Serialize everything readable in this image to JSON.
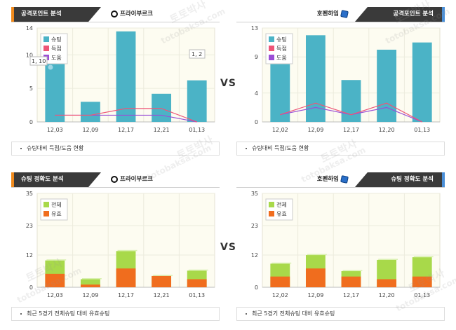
{
  "watermark": {
    "korean": "토토박사",
    "site": "totobaksa.com"
  },
  "vs_label": "VS",
  "panels": {
    "attack_home": {
      "tab": "공격포인트 분석",
      "team": "프라이부르크",
      "footer": "슈팅대비 득점/도움 현황",
      "tooltip": "1, 10",
      "tooltip2": "1, 2"
    },
    "attack_away": {
      "tab": "공격포인트 분석",
      "team": "호펜하임",
      "footer": "슈팅대비 득점/도움 현황"
    },
    "shot_home": {
      "tab": "슈팅 정확도 분석",
      "team": "프라이부르크",
      "footer": "최근 5경기 전체슈팅 대비 유효슈팅"
    },
    "shot_away": {
      "tab": "슈팅 정확도 분석",
      "team": "호펜하임",
      "footer": "최근 5경기 전체슈팅 대비 유효슈팅"
    }
  },
  "colors": {
    "shots": "#4bb3c6",
    "goals": "#ee5577",
    "assists": "#9b4fd6",
    "total": "#a8d94a",
    "on_target": "#f06d1e",
    "accent_left": "#f08a1c",
    "accent_right": "#4a8fd8"
  },
  "chart_data": [
    {
      "type": "bar",
      "title": "공격포인트 분석",
      "team": "프라이부르크",
      "categories": [
        "12,03",
        "12,09",
        "12,17",
        "12,21",
        "01,13"
      ],
      "ylim": [
        0,
        14
      ],
      "yticks": [
        0,
        5,
        10,
        14
      ],
      "legend_position": "top-left",
      "series": [
        {
          "name": "슈팅",
          "kind": "bar",
          "values": [
            10,
            3,
            13.5,
            4.2,
            6.2
          ]
        },
        {
          "name": "득점",
          "kind": "line",
          "values": [
            1,
            1,
            2,
            2,
            0
          ]
        },
        {
          "name": "도움",
          "kind": "line",
          "values": [
            1,
            1,
            1,
            1,
            0
          ]
        }
      ]
    },
    {
      "type": "bar",
      "title": "공격포인트 분석",
      "team": "호펜하임",
      "categories": [
        "12,02",
        "12,09",
        "12,17",
        "12,20",
        "01,13"
      ],
      "ylim": [
        0,
        13
      ],
      "yticks": [
        0,
        4,
        9,
        13
      ],
      "legend_position": "top-left",
      "series": [
        {
          "name": "슈팅",
          "kind": "bar",
          "values": [
            8,
            12,
            5.8,
            10,
            11
          ]
        },
        {
          "name": "득점",
          "kind": "line",
          "values": [
            1,
            2.6,
            1,
            2.6,
            0
          ]
        },
        {
          "name": "도움",
          "kind": "line",
          "values": [
            1,
            2,
            1,
            2,
            0
          ]
        }
      ]
    },
    {
      "type": "bar",
      "title": "슈팅 정확도 분석",
      "team": "프라이부르크",
      "categories": [
        "12,03",
        "12,09",
        "12,17",
        "12,21",
        "01,13"
      ],
      "ylim": [
        0,
        35
      ],
      "yticks": [
        0,
        12,
        23,
        35
      ],
      "legend_position": "top-left",
      "series": [
        {
          "name": "전체",
          "kind": "bar",
          "values": [
            10,
            3,
            13.5,
            4.2,
            6.2
          ]
        },
        {
          "name": "유효",
          "kind": "bar",
          "values": [
            5,
            1,
            7,
            4.2,
            3
          ]
        }
      ]
    },
    {
      "type": "bar",
      "title": "슈팅 정확도 분석",
      "team": "호펜하임",
      "categories": [
        "12,02",
        "12,09",
        "12,17",
        "12,20",
        "01,13"
      ],
      "ylim": [
        0,
        35
      ],
      "yticks": [
        0,
        12,
        23,
        35
      ],
      "legend_position": "top-left",
      "series": [
        {
          "name": "전체",
          "kind": "bar",
          "values": [
            8.8,
            12,
            6,
            10.2,
            11.2
          ]
        },
        {
          "name": "유효",
          "kind": "bar",
          "values": [
            4,
            7,
            4,
            3,
            4
          ]
        }
      ]
    }
  ]
}
